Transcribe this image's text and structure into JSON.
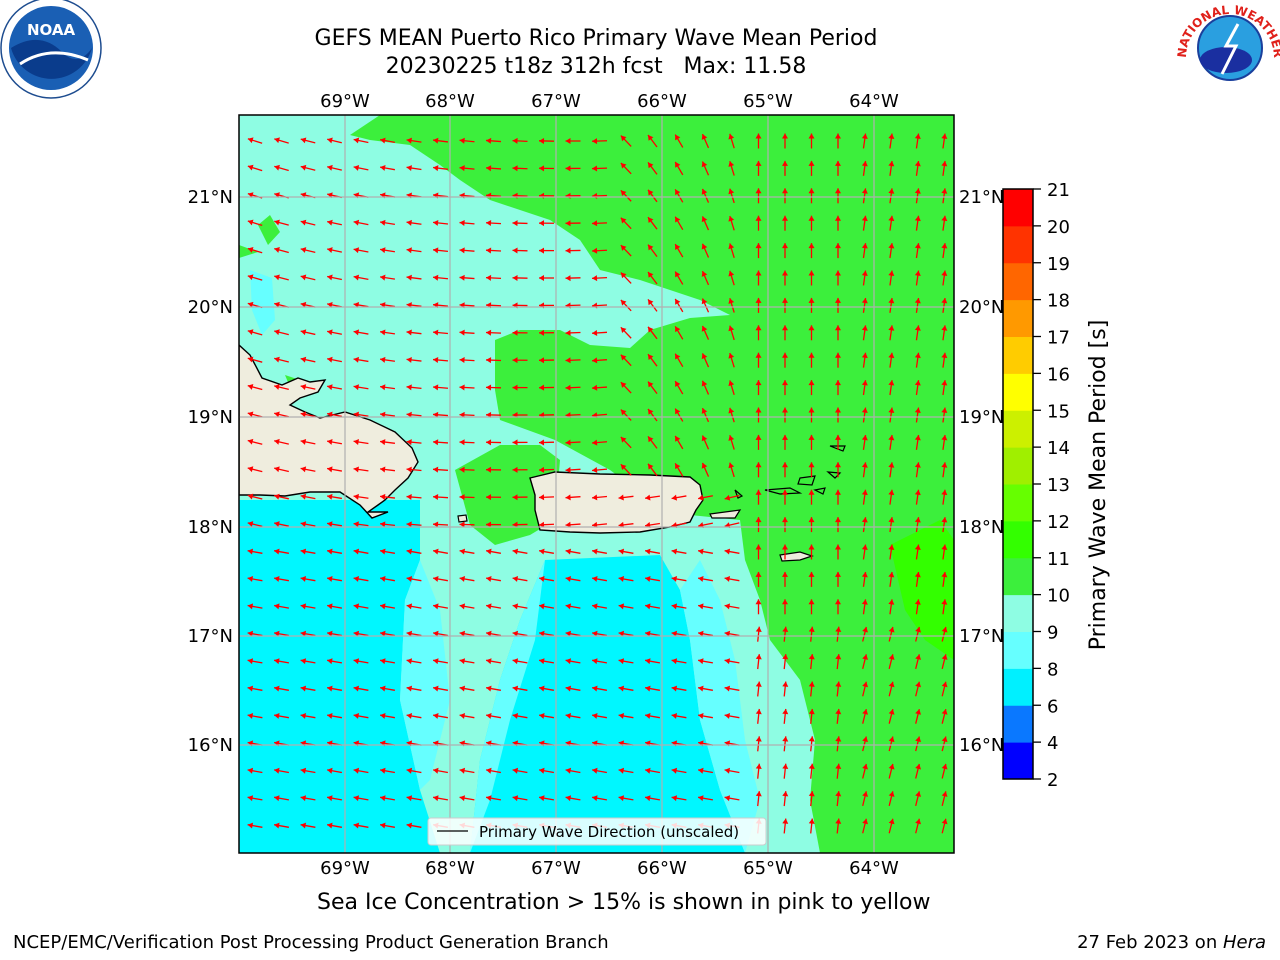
{
  "title": {
    "line1": "GEFS MEAN Puerto Rico Primary Wave Mean Period",
    "line2": "20230225 t18z 312h fcst   Max: 11.58"
  },
  "map": {
    "lon_labels": [
      "69°W",
      "68°W",
      "67°W",
      "66°W",
      "65°W",
      "64°W"
    ],
    "lat_labels": [
      "21°N",
      "20°N",
      "19°N",
      "18°N",
      "17°N",
      "16°N"
    ],
    "legend_label": "Primary Wave Direction (unscaled)",
    "colors": {
      "land": "#efedde",
      "green": "#3cef3c",
      "aqua": "#8efde3",
      "lightcyan": "#66ffff",
      "cyan": "#00f7ff",
      "arrow": "#ff0000",
      "grid": "#b0b0b0"
    }
  },
  "colorbar": {
    "label": "Primary Wave Mean Period [s]",
    "ticks": [
      "2",
      "4",
      "6",
      "8",
      "9",
      "10",
      "11",
      "12",
      "13",
      "14",
      "15",
      "16",
      "17",
      "18",
      "19",
      "20",
      "21"
    ],
    "colors": [
      "#0000ff",
      "#0a78ff",
      "#00f0ff",
      "#66ffff",
      "#8efde3",
      "#3cef3c",
      "#33ff00",
      "#66ff00",
      "#a0ef00",
      "#ccf000",
      "#ffff00",
      "#ffcc00",
      "#ff9900",
      "#ff6600",
      "#ff3300",
      "#ff0000"
    ]
  },
  "note": "Sea Ice Concentration > 15% is shown in pink to yellow",
  "footer": {
    "left": "NCEP/EMC/Verification Post Processing Product Generation Branch",
    "right_prefix": "27 Feb 2023 on ",
    "right_machine": "Hera"
  },
  "logos": {
    "noaa_text": "NOAA",
    "nws_text": "NATIONAL WEATHER SERVICE"
  }
}
